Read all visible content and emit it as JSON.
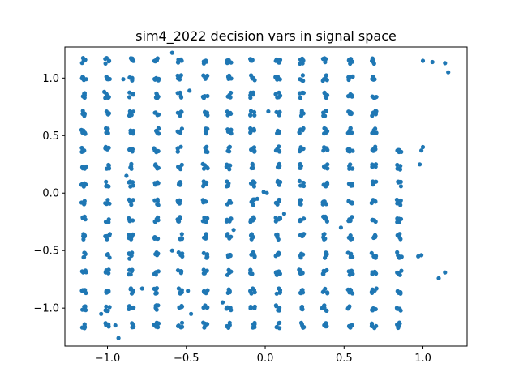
{
  "chart_data": {
    "type": "scatter",
    "title": "sim4_2022 decision vars in signal space",
    "xlabel": "",
    "ylabel": "",
    "xlim": [
      -1.27,
      1.28
    ],
    "ylim": [
      -1.33,
      1.27
    ],
    "xticks": [
      -1.0,
      -0.5,
      0.0,
      0.5,
      1.0
    ],
    "yticks": [
      -1.0,
      -0.5,
      0.0,
      0.5,
      1.0
    ],
    "xtick_labels": [
      "−1.0",
      "−0.5",
      "0.0",
      "0.5",
      "1.0"
    ],
    "ytick_labels": [
      "−1.0",
      "−0.5",
      "0.0",
      "0.5",
      "1.0"
    ],
    "grid": false,
    "point_color": "#1f77b4",
    "grid_levels": [
      -1.15,
      -1.0,
      -0.85,
      -0.69,
      -0.54,
      -0.38,
      -0.23,
      -0.08,
      0.08,
      0.23,
      0.38,
      0.54,
      0.69,
      0.85,
      1.0,
      1.15
    ],
    "lattice_columns": [
      {
        "x": -1.15,
        "y": [
          -1.15,
          -1.0,
          -0.85,
          -0.69,
          -0.54,
          -0.38,
          -0.23,
          -0.08,
          0.08,
          0.23,
          0.38,
          0.54,
          0.69,
          0.85,
          1.0,
          1.15
        ]
      },
      {
        "x": -1.0,
        "y": [
          -1.15,
          -1.0,
          -0.85,
          -0.69,
          -0.54,
          -0.38,
          -0.23,
          -0.08,
          0.08,
          0.23,
          0.38,
          0.54,
          0.69,
          0.85,
          1.0,
          1.15
        ]
      },
      {
        "x": -0.85,
        "y": [
          -1.15,
          -1.0,
          -0.85,
          -0.69,
          -0.54,
          -0.38,
          -0.23,
          -0.08,
          0.08,
          0.23,
          0.38,
          0.54,
          0.69,
          0.85,
          1.0,
          1.15
        ]
      },
      {
        "x": -0.69,
        "y": [
          -1.15,
          -1.0,
          -0.85,
          -0.69,
          -0.54,
          -0.38,
          -0.23,
          -0.08,
          0.08,
          0.23,
          0.38,
          0.54,
          0.69,
          0.85,
          1.0,
          1.15
        ]
      },
      {
        "x": -0.54,
        "y": [
          -1.15,
          -1.0,
          -0.85,
          -0.69,
          -0.54,
          -0.38,
          -0.23,
          -0.08,
          0.08,
          0.23,
          0.38,
          0.54,
          0.69,
          0.85,
          1.0,
          1.15
        ]
      },
      {
        "x": -0.38,
        "y": [
          -1.15,
          -1.0,
          -0.85,
          -0.69,
          -0.54,
          -0.38,
          -0.23,
          -0.08,
          0.08,
          0.23,
          0.38,
          0.54,
          0.69,
          0.85,
          1.0,
          1.15
        ]
      },
      {
        "x": -0.23,
        "y": [
          -1.15,
          -1.0,
          -0.85,
          -0.69,
          -0.54,
          -0.38,
          -0.23,
          -0.08,
          0.08,
          0.23,
          0.38,
          0.54,
          0.69,
          0.85,
          1.0,
          1.15
        ]
      },
      {
        "x": -0.08,
        "y": [
          -1.15,
          -1.0,
          -0.85,
          -0.69,
          -0.54,
          -0.38,
          -0.23,
          -0.08,
          0.08,
          0.23,
          0.38,
          0.54,
          0.69,
          0.85,
          1.0,
          1.15
        ]
      },
      {
        "x": 0.08,
        "y": [
          -1.15,
          -1.0,
          -0.85,
          -0.69,
          -0.54,
          -0.38,
          -0.23,
          -0.08,
          0.08,
          0.23,
          0.38,
          0.54,
          0.69,
          0.85,
          1.0,
          1.15
        ]
      },
      {
        "x": 0.23,
        "y": [
          -1.15,
          -1.0,
          -0.85,
          -0.69,
          -0.54,
          -0.38,
          -0.23,
          -0.08,
          0.08,
          0.23,
          0.38,
          0.54,
          0.69,
          0.85,
          1.0,
          1.15
        ]
      },
      {
        "x": 0.38,
        "y": [
          -1.15,
          -1.0,
          -0.85,
          -0.69,
          -0.54,
          -0.38,
          -0.23,
          -0.08,
          0.08,
          0.23,
          0.38,
          0.54,
          0.69,
          0.85,
          1.0,
          1.15
        ]
      },
      {
        "x": 0.54,
        "y": [
          -1.15,
          -1.0,
          -0.85,
          -0.69,
          -0.54,
          -0.38,
          -0.23,
          -0.08,
          0.08,
          0.23,
          0.38,
          0.54,
          0.69,
          0.85,
          1.0,
          1.15
        ]
      },
      {
        "x": 0.69,
        "y": [
          -1.15,
          -1.0,
          -0.85,
          -0.69,
          -0.54,
          -0.38,
          -0.23,
          -0.08,
          0.08,
          0.23,
          0.38,
          0.54,
          0.69,
          0.85,
          1.0,
          1.15
        ]
      },
      {
        "x": 0.85,
        "y": [
          -1.15,
          -1.0,
          -0.85,
          -0.69,
          -0.54,
          -0.38,
          -0.23,
          -0.08,
          0.08,
          0.23,
          0.38
        ]
      }
    ],
    "scattered_points": [
      [
        1.0,
        1.15
      ],
      [
        1.06,
        1.14
      ],
      [
        1.14,
        1.13
      ],
      [
        1.16,
        1.05
      ],
      [
        1.0,
        0.4
      ],
      [
        0.99,
        0.37
      ],
      [
        0.98,
        0.25
      ],
      [
        0.99,
        -0.54
      ],
      [
        0.97,
        -0.55
      ],
      [
        1.14,
        -0.69
      ],
      [
        1.1,
        -0.74
      ],
      [
        -0.59,
        1.22
      ],
      [
        -0.9,
        0.99
      ],
      [
        -1.02,
        0.88
      ],
      [
        -0.48,
        0.89
      ],
      [
        0.02,
        0.71
      ],
      [
        0.01,
        0.0
      ],
      [
        -0.01,
        0.01
      ],
      [
        0.12,
        -0.18
      ],
      [
        -0.59,
        -0.5
      ],
      [
        -0.88,
        0.15
      ],
      [
        -0.2,
        -0.32
      ],
      [
        -0.78,
        -0.83
      ],
      [
        -0.86,
        -0.57
      ],
      [
        -1.04,
        -1.05
      ],
      [
        -0.93,
        -1.26
      ],
      [
        -0.95,
        -1.15
      ],
      [
        -0.49,
        -0.85
      ],
      [
        -0.27,
        -0.95
      ],
      [
        -0.47,
        -1.05
      ],
      [
        0.48,
        -0.3
      ],
      [
        0.36,
        -1.0
      ],
      [
        0.55,
        -1.15
      ],
      [
        -0.05,
        -0.05
      ]
    ]
  }
}
